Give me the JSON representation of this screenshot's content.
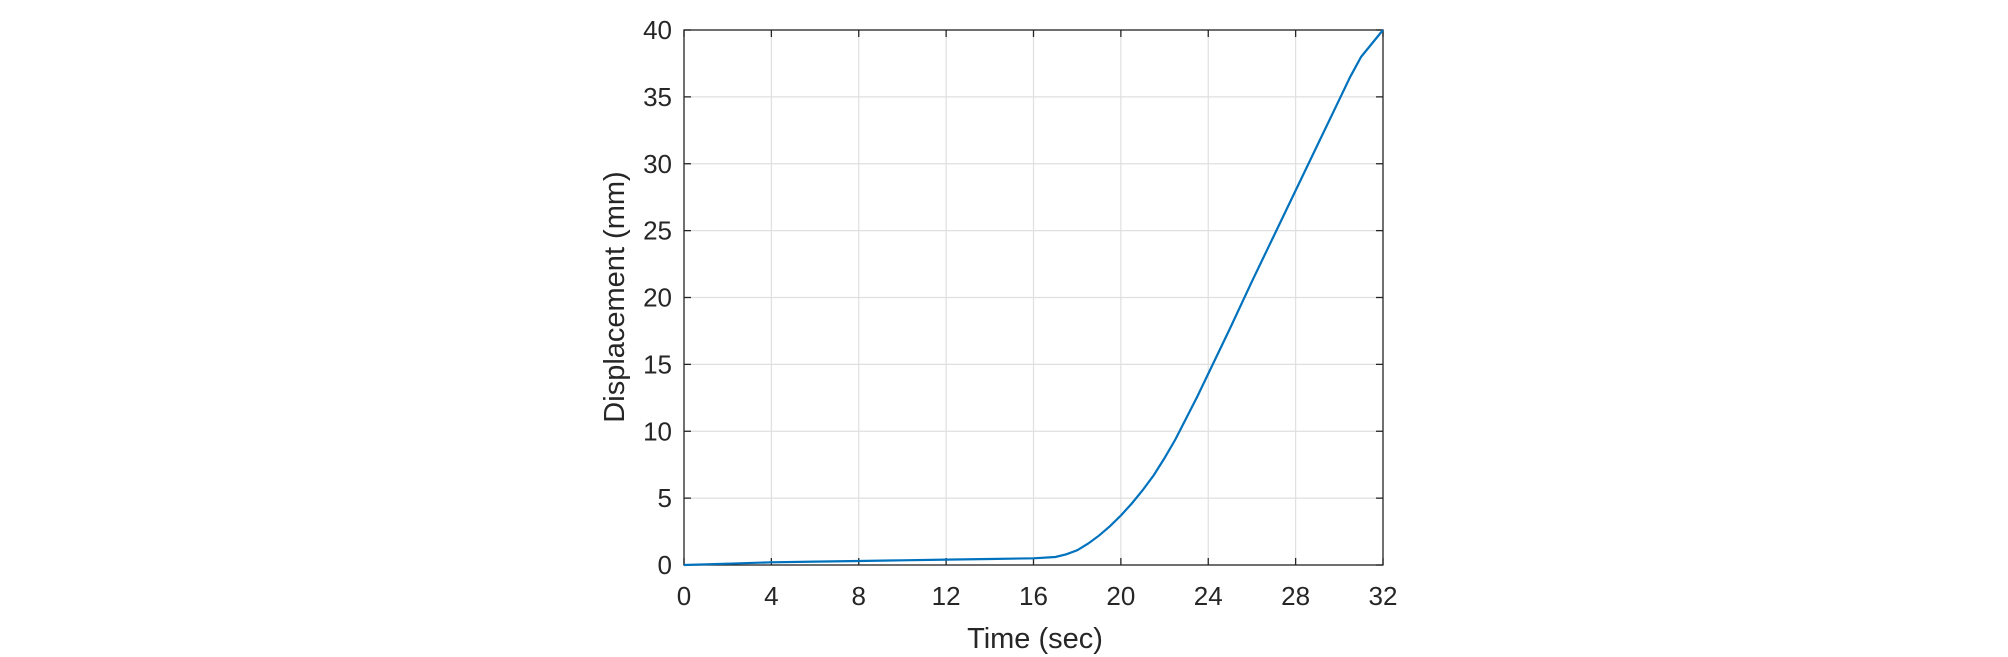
{
  "chart_data": {
    "type": "line",
    "xlabel": "Time (sec)",
    "ylabel": "Displacement (mm)",
    "x": [
      0,
      2,
      4,
      6,
      8,
      10,
      12,
      14,
      16,
      17,
      17.5,
      18,
      18.5,
      19,
      19.5,
      20,
      20.5,
      21,
      21.5,
      22,
      22.5,
      23,
      23.5,
      24,
      25,
      26,
      27,
      28,
      29,
      30,
      30.5,
      31,
      31.5,
      32
    ],
    "values": [
      0,
      0.1,
      0.2,
      0.25,
      0.3,
      0.35,
      0.4,
      0.45,
      0.5,
      0.6,
      0.8,
      1.1,
      1.6,
      2.2,
      2.9,
      3.7,
      4.6,
      5.6,
      6.7,
      8,
      9.4,
      11,
      12.6,
      14.3,
      17.7,
      21.2,
      24.6,
      28,
      31.4,
      34.8,
      36.5,
      38,
      39,
      40
    ],
    "color": "#0072bd",
    "xlim": [
      0,
      32
    ],
    "xticks": [
      0,
      4,
      8,
      12,
      16,
      20,
      24,
      28,
      32
    ],
    "ylim": [
      0,
      40
    ],
    "yticks": [
      0,
      5,
      10,
      15,
      20,
      25,
      30,
      35,
      40
    ],
    "grid": true
  }
}
